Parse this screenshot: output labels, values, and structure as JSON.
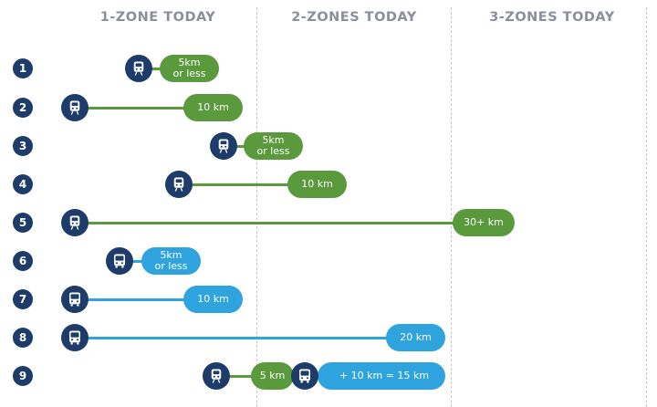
{
  "headers": [
    "1-ZONE TODAY",
    "2-ZONES TODAY",
    "3-ZONES TODAY"
  ],
  "colors": {
    "train": "#5a9a3c",
    "bus": "#2ea3de",
    "icon_bg": "#1d3c6a",
    "number_bg": "#1d3c6a",
    "header_text": "#8a9099"
  },
  "rows": [
    {
      "number": "1",
      "mode": "train",
      "label": "5km\nor less"
    },
    {
      "number": "2",
      "mode": "train",
      "label": "10 km"
    },
    {
      "number": "3",
      "mode": "train",
      "label": "5km\nor less"
    },
    {
      "number": "4",
      "mode": "train",
      "label": "10 km"
    },
    {
      "number": "5",
      "mode": "train",
      "label": "30+ km"
    },
    {
      "number": "6",
      "mode": "bus",
      "label": "5km\nor less"
    },
    {
      "number": "7",
      "mode": "bus",
      "label": "10 km"
    },
    {
      "number": "8",
      "mode": "bus",
      "label": "20 km"
    },
    {
      "number": "9",
      "mode": "train",
      "label": "5 km",
      "transfer": {
        "mode": "bus",
        "label": "+ 10 km = 15 km"
      }
    }
  ]
}
